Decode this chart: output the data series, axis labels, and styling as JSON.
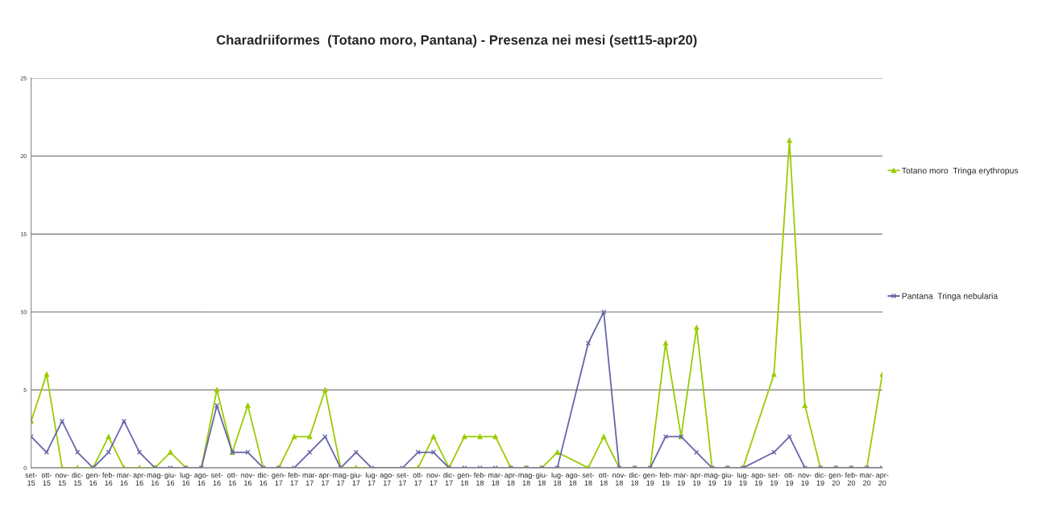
{
  "chart_data": {
    "type": "line",
    "title": "Charadriiformes  (Totano moro, Pantana) - Presenza nei mesi (sett15-apr20)",
    "categories": [
      "set-15",
      "ott-15",
      "nov-15",
      "dic-15",
      "gen-16",
      "feb-16",
      "mar-16",
      "apr-16",
      "mag-16",
      "giu-16",
      "lug-16",
      "ago-16",
      "set-16",
      "ott-16",
      "nov-16",
      "dic-16",
      "gen-17",
      "feb-17",
      "mar-17",
      "apr-17",
      "mag-17",
      "giu-17",
      "lug-17",
      "ago-17",
      "set-17",
      "ott-17",
      "nov-17",
      "dic-17",
      "gen-18",
      "feb-18",
      "mar-18",
      "apr-18",
      "mag-18",
      "giu-18",
      "lug-18",
      "ago-18",
      "set-18",
      "ott-18",
      "nov-18",
      "dic-18",
      "gen-19",
      "feb-19",
      "mar-19",
      "apr-19",
      "mag-19",
      "giu-19",
      "lug-19",
      "ago-19",
      "set-19",
      "ott-19",
      "nov-19",
      "dic-19",
      "gen-20",
      "feb-20",
      "mar-20",
      "apr-20"
    ],
    "series": [
      {
        "name": "Totano moro  Tringa erythropus",
        "color": "#99cc00",
        "marker": "triangle",
        "values": [
          3,
          6,
          0,
          0,
          0,
          2,
          0,
          0,
          0,
          1,
          0,
          0,
          5,
          1,
          4,
          0,
          0,
          2,
          2,
          5,
          0,
          0,
          null,
          null,
          null,
          0,
          2,
          0,
          2,
          2,
          2,
          0,
          0,
          0,
          1,
          null,
          0,
          2,
          0,
          0,
          0,
          8,
          2,
          9,
          0,
          0,
          0,
          null,
          6,
          21,
          4,
          0,
          0,
          0,
          0,
          6
        ]
      },
      {
        "name": "Pantana  Tringa nebularia",
        "color": "#6666aa",
        "marker": "cross",
        "values": [
          2,
          1,
          3,
          1,
          0,
          1,
          3,
          1,
          0,
          0,
          0,
          0,
          4,
          1,
          1,
          0,
          0,
          0,
          1,
          2,
          0,
          1,
          0,
          null,
          0,
          1,
          1,
          0,
          0,
          0,
          0,
          0,
          0,
          0,
          0,
          null,
          8,
          10,
          0,
          0,
          0,
          2,
          2,
          1,
          0,
          0,
          0,
          null,
          1,
          2,
          0,
          0,
          0,
          0,
          0,
          0
        ]
      }
    ],
    "ylim": [
      0,
      25
    ],
    "yticks": [
      0,
      5,
      10,
      15,
      20,
      25
    ],
    "grid": "y",
    "legend": "right"
  }
}
